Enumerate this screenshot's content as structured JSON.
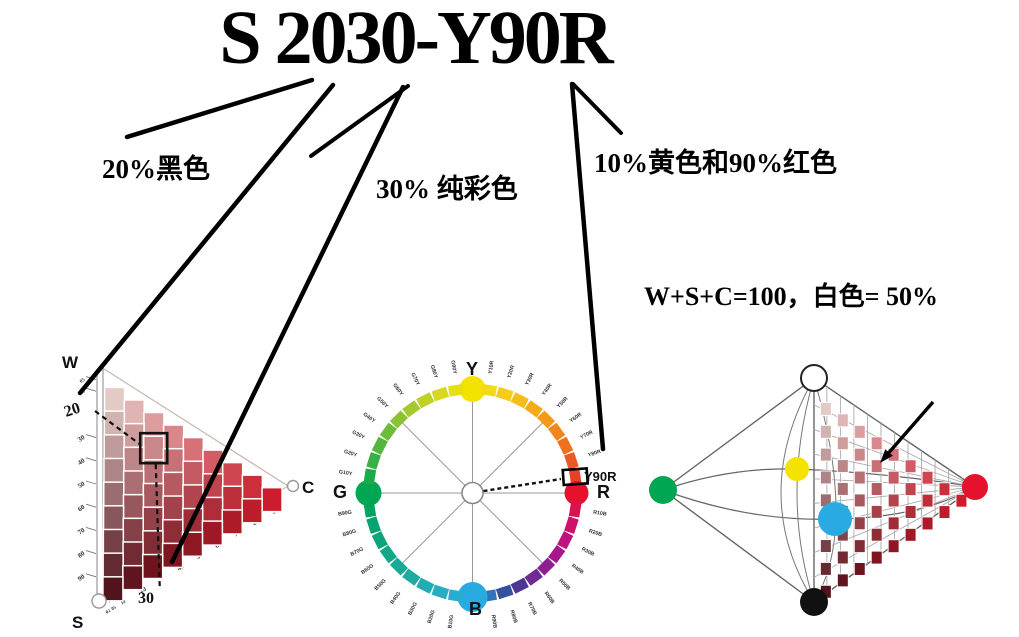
{
  "title": "S 2030-Y90R",
  "annotations": {
    "black": "20%黑色",
    "chromatic": "30% 纯彩色",
    "hue": "10%黄色和90%红色",
    "formula": "W+S+C=100，白色= 50%"
  },
  "triangle": {
    "vertex_labels": {
      "w": "W",
      "s": "S",
      "c": "C"
    },
    "blackness_ticks": [
      "05",
      "10",
      "30",
      "40",
      "50",
      "60",
      "70",
      "80",
      "90"
    ],
    "blackness_highlight": "20",
    "chroma_ticks": [
      "02",
      "05",
      "10",
      "20",
      "40",
      "50",
      "60",
      "70",
      "80",
      "90"
    ],
    "chroma_highlight": "30",
    "mix_colors": {
      "white": "#f8f0e8",
      "black": "#451019",
      "chromatic": "#d81e2e"
    }
  },
  "circle": {
    "majors": [
      {
        "label": "Y",
        "color": "#f4e300"
      },
      {
        "label": "R",
        "color": "#e5112d"
      },
      {
        "label": "B",
        "color": "#29abe2"
      },
      {
        "label": "G",
        "color": "#00a651"
      }
    ],
    "highlight_label": "Y90R",
    "hues": [
      {
        "label": "Y",
        "color": "#f3e600"
      },
      {
        "label": "Y10R",
        "color": "#f4da14"
      },
      {
        "label": "Y20R",
        "color": "#f6cc16"
      },
      {
        "label": "Y30R",
        "color": "#f6bc18"
      },
      {
        "label": "Y40R",
        "color": "#f5ab19"
      },
      {
        "label": "Y50R",
        "color": "#f4991b"
      },
      {
        "label": "Y60R",
        "color": "#f1861d"
      },
      {
        "label": "Y70R",
        "color": "#ee7120"
      },
      {
        "label": "Y80R",
        "color": "#eb5a22"
      },
      {
        "label": "Y90R",
        "color": "#e74124"
      },
      {
        "label": "R",
        "color": "#e5112d"
      },
      {
        "label": "R10B",
        "color": "#dc1150"
      },
      {
        "label": "R20B",
        "color": "#d01169"
      },
      {
        "label": "R30B",
        "color": "#bf127f"
      },
      {
        "label": "R40B",
        "color": "#a8178b"
      },
      {
        "label": "R50B",
        "color": "#8d2091"
      },
      {
        "label": "R60B",
        "color": "#6e2b93"
      },
      {
        "label": "R70B",
        "color": "#4c3794"
      },
      {
        "label": "R80B",
        "color": "#34519e"
      },
      {
        "label": "R90B",
        "color": "#3274bb"
      },
      {
        "label": "B",
        "color": "#29abe2"
      },
      {
        "label": "B10G",
        "color": "#27add2"
      },
      {
        "label": "B20G",
        "color": "#25aec1"
      },
      {
        "label": "B30G",
        "color": "#22adb1"
      },
      {
        "label": "B40G",
        "color": "#1eaba2"
      },
      {
        "label": "B50G",
        "color": "#19a994"
      },
      {
        "label": "B60G",
        "color": "#13a687"
      },
      {
        "label": "B70G",
        "color": "#0ca47a"
      },
      {
        "label": "B80G",
        "color": "#06a36e"
      },
      {
        "label": "B90G",
        "color": "#02a260"
      },
      {
        "label": "G",
        "color": "#00a651"
      },
      {
        "label": "G10Y",
        "color": "#1cab4b"
      },
      {
        "label": "G20Y",
        "color": "#38b045"
      },
      {
        "label": "G30Y",
        "color": "#54b63f"
      },
      {
        "label": "G40Y",
        "color": "#6fbc39"
      },
      {
        "label": "G50Y",
        "color": "#8ac233"
      },
      {
        "label": "G60Y",
        "color": "#a5c92d"
      },
      {
        "label": "G70Y",
        "color": "#bfd027"
      },
      {
        "label": "G80Y",
        "color": "#d7d921"
      },
      {
        "label": "G90Y",
        "color": "#e7e010"
      }
    ]
  },
  "solid": {
    "node_colors": {
      "white": "#ffffff",
      "black": "#111111",
      "green": "#00a651",
      "red": "#e5112d",
      "yellow": "#f4e300",
      "blue": "#29abe2"
    }
  }
}
